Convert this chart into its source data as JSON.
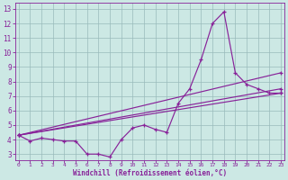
{
  "bg_color": "#cce8e4",
  "line_color": "#882299",
  "grid_color": "#99bbbb",
  "xlim_min": -0.3,
  "xlim_max": 23.3,
  "ylim_min": 2.6,
  "ylim_max": 13.4,
  "xticks": [
    0,
    1,
    2,
    3,
    4,
    5,
    6,
    7,
    8,
    9,
    10,
    11,
    12,
    13,
    14,
    15,
    16,
    17,
    18,
    19,
    20,
    21,
    22,
    23
  ],
  "yticks": [
    3,
    4,
    5,
    6,
    7,
    8,
    9,
    10,
    11,
    12,
    13
  ],
  "xlabel": "Windchill (Refroidissement éolien,°C)",
  "jagged_x": [
    0,
    1,
    2,
    3,
    4,
    5,
    6,
    7,
    8,
    9,
    10,
    11,
    12,
    13,
    14,
    15,
    16,
    17,
    18,
    19,
    20,
    21,
    22,
    23
  ],
  "jagged_y": [
    4.3,
    3.9,
    4.1,
    4.0,
    3.9,
    3.9,
    3.0,
    3.0,
    2.8,
    4.0,
    4.8,
    5.0,
    4.7,
    4.5,
    6.5,
    7.5,
    9.5,
    12.0,
    12.8,
    8.6,
    7.8,
    7.5,
    7.2,
    7.2
  ],
  "line1_x": [
    0,
    23
  ],
  "line1_y": [
    4.3,
    7.2
  ],
  "line2_x": [
    0,
    23
  ],
  "line2_y": [
    4.3,
    7.5
  ],
  "line3_x": [
    0,
    23
  ],
  "line3_y": [
    4.3,
    8.6
  ],
  "lw": 0.85,
  "ms": 3.2,
  "mew": 0.9,
  "tick_fontsize_x": 4.5,
  "tick_fontsize_y": 5.5,
  "xlabel_fontsize": 5.5
}
